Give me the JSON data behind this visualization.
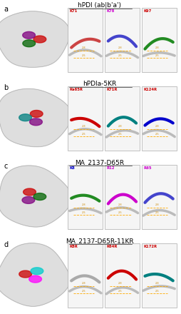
{
  "rows": [
    {
      "label": "a",
      "title": "hPDI (ab|b'a')",
      "title_underline": true,
      "bg_color": "#ffffff"
    },
    {
      "label": "b",
      "title": "hPDIa-5KR",
      "title_underline": true,
      "bg_color": "#ffffff"
    },
    {
      "label": "c",
      "title": "MA_2137-D65R",
      "title_underline": true,
      "bg_color": "#ffffff"
    },
    {
      "label": "d",
      "title": "MA_2137-D65R-11KR",
      "title_underline": true,
      "bg_color": "#ffffff"
    }
  ],
  "figure_bg": "#ffffff",
  "label_fontsize": 7,
  "title_fontsize": 6.5,
  "panel_labels": [
    [
      "K71",
      "K78",
      "K97"
    ],
    [
      "Ka65R",
      "K71R",
      "K124R"
    ],
    [
      "K8",
      "R12",
      "R65"
    ],
    [
      "K8R",
      "K64R",
      "K172R"
    ]
  ],
  "panel_label_colors": [
    [
      "#cc0000",
      "#cc00cc",
      "#cc0000"
    ],
    [
      "#cc0000",
      "#cc0000",
      "#cc0000"
    ],
    [
      "#0000cc",
      "#cc00cc",
      "#cc00cc"
    ],
    [
      "#cc0000",
      "#cc0000",
      "#cc0000"
    ]
  ],
  "protein_highlight_colors": [
    [
      "#cc0000",
      "#800080",
      "#006400"
    ],
    [
      "#cc0000",
      "#008080",
      "#800080"
    ],
    [
      "#cc0000",
      "#800080",
      "#006400"
    ],
    [
      "#cc0000",
      "#ff00ff",
      "#00cccc"
    ]
  ],
  "panel_ribbon_colors": [
    [
      "#cc4444",
      "#4444cc",
      "#228B22"
    ],
    [
      "#cc0000",
      "#008080",
      "#0000cc"
    ],
    [
      "#228B22",
      "#cc00cc",
      "#4444cc"
    ],
    [
      "#aaaaaa",
      "#cc0000",
      "#008080"
    ]
  ]
}
